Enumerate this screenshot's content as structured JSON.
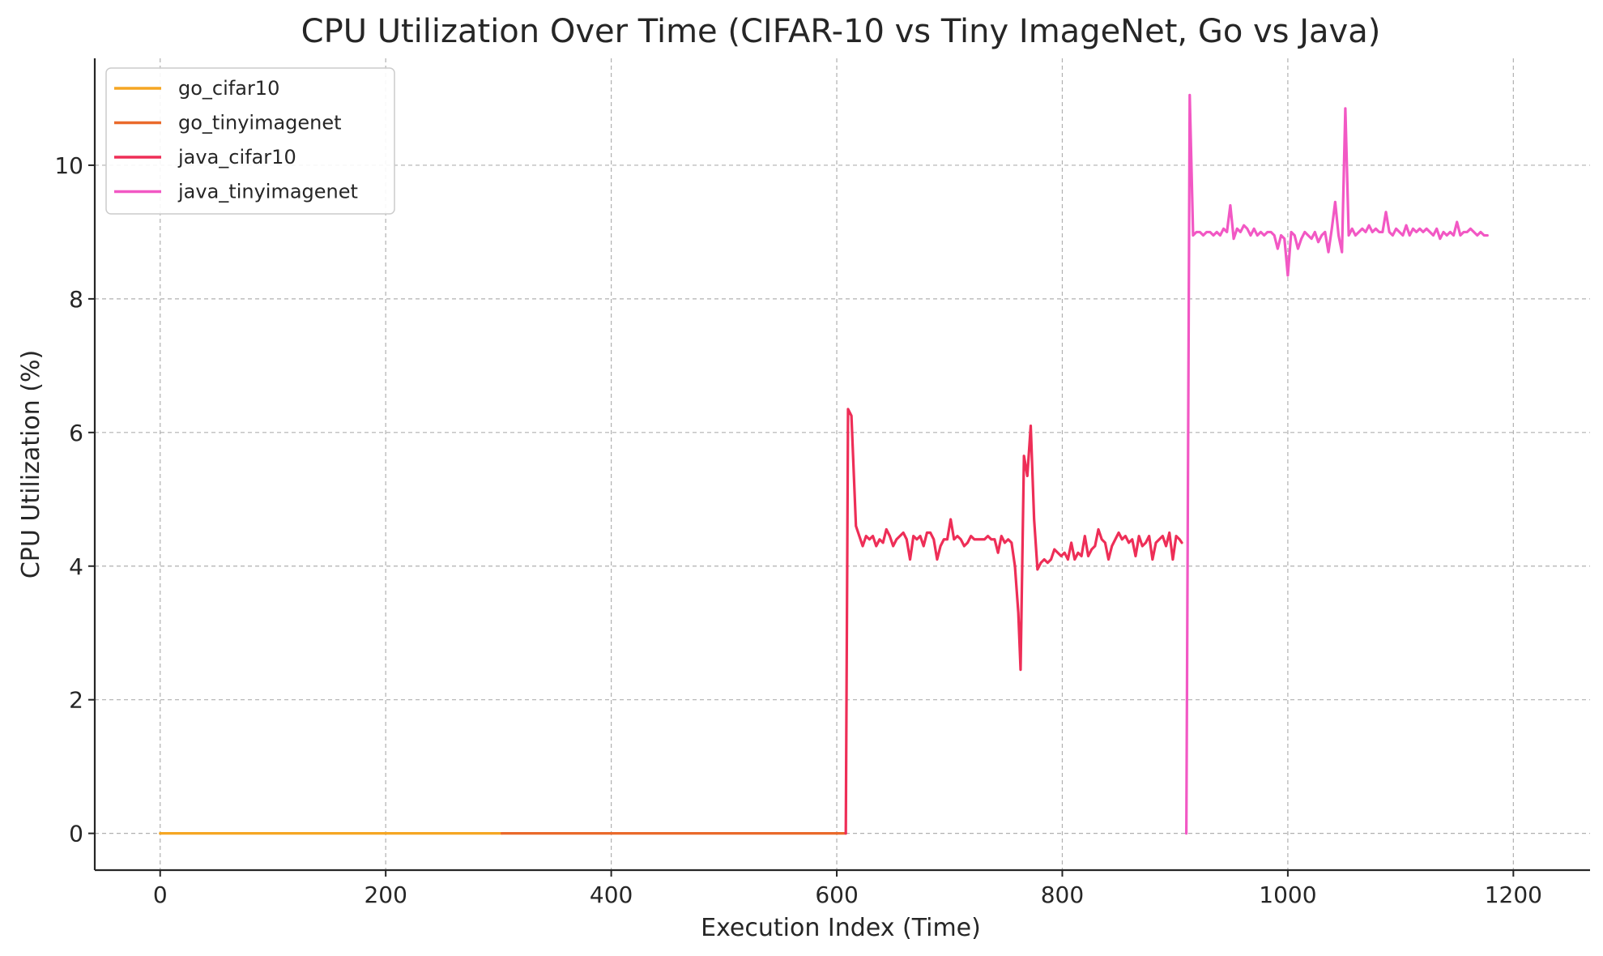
{
  "chart_data": {
    "type": "line",
    "title": "CPU Utilization Over Time (CIFAR-10 vs Tiny ImageNet, Go vs Java)",
    "xlabel": "Execution Index (Time)",
    "ylabel": "CPU Utilization (%)",
    "xlim": [
      -58,
      1268
    ],
    "ylim": [
      -0.55,
      11.6
    ],
    "xticks": [
      0,
      200,
      400,
      600,
      800,
      1000,
      1200
    ],
    "yticks": [
      0,
      2,
      4,
      6,
      8,
      10
    ],
    "grid": true,
    "legend_position": "top-left",
    "series": [
      {
        "name": "go_cifar10",
        "color": "#f5a623",
        "points": [
          [
            0,
            0
          ],
          [
            303,
            0
          ]
        ]
      },
      {
        "name": "go_tinyimagenet",
        "color": "#ea6a2b",
        "points": [
          [
            303,
            0
          ],
          [
            608,
            0
          ]
        ]
      },
      {
        "name": "java_cifar10",
        "color": "#ee2e57",
        "points": [
          [
            608,
            0
          ],
          [
            610,
            6.35
          ],
          [
            613,
            6.25
          ],
          [
            617,
            4.6
          ],
          [
            620,
            4.45
          ],
          [
            623,
            4.3
          ],
          [
            626,
            4.45
          ],
          [
            629,
            4.4
          ],
          [
            632,
            4.45
          ],
          [
            635,
            4.3
          ],
          [
            638,
            4.4
          ],
          [
            641,
            4.35
          ],
          [
            644,
            4.55
          ],
          [
            647,
            4.45
          ],
          [
            650,
            4.3
          ],
          [
            653,
            4.4
          ],
          [
            656,
            4.45
          ],
          [
            659,
            4.5
          ],
          [
            662,
            4.4
          ],
          [
            665,
            4.1
          ],
          [
            668,
            4.45
          ],
          [
            671,
            4.4
          ],
          [
            674,
            4.45
          ],
          [
            677,
            4.3
          ],
          [
            680,
            4.5
          ],
          [
            683,
            4.5
          ],
          [
            686,
            4.4
          ],
          [
            689,
            4.1
          ],
          [
            692,
            4.3
          ],
          [
            695,
            4.4
          ],
          [
            698,
            4.4
          ],
          [
            701,
            4.7
          ],
          [
            704,
            4.4
          ],
          [
            707,
            4.45
          ],
          [
            710,
            4.4
          ],
          [
            713,
            4.3
          ],
          [
            716,
            4.35
          ],
          [
            719,
            4.45
          ],
          [
            722,
            4.4
          ],
          [
            725,
            4.4
          ],
          [
            728,
            4.4
          ],
          [
            731,
            4.4
          ],
          [
            734,
            4.45
          ],
          [
            737,
            4.4
          ],
          [
            740,
            4.4
          ],
          [
            743,
            4.2
          ],
          [
            746,
            4.45
          ],
          [
            749,
            4.35
          ],
          [
            752,
            4.4
          ],
          [
            755,
            4.35
          ],
          [
            758,
            4.0
          ],
          [
            761,
            3.3
          ],
          [
            763,
            2.45
          ],
          [
            766,
            5.65
          ],
          [
            769,
            5.35
          ],
          [
            772,
            6.1
          ],
          [
            775,
            4.7
          ],
          [
            778,
            3.95
          ],
          [
            781,
            4.05
          ],
          [
            784,
            4.1
          ],
          [
            787,
            4.05
          ],
          [
            790,
            4.1
          ],
          [
            793,
            4.25
          ],
          [
            796,
            4.2
          ],
          [
            799,
            4.15
          ],
          [
            802,
            4.2
          ],
          [
            805,
            4.1
          ],
          [
            808,
            4.35
          ],
          [
            811,
            4.1
          ],
          [
            814,
            4.2
          ],
          [
            817,
            4.15
          ],
          [
            820,
            4.45
          ],
          [
            823,
            4.15
          ],
          [
            826,
            4.25
          ],
          [
            829,
            4.3
          ],
          [
            832,
            4.55
          ],
          [
            835,
            4.4
          ],
          [
            838,
            4.35
          ],
          [
            841,
            4.1
          ],
          [
            844,
            4.3
          ],
          [
            847,
            4.4
          ],
          [
            850,
            4.5
          ],
          [
            853,
            4.4
          ],
          [
            856,
            4.45
          ],
          [
            859,
            4.35
          ],
          [
            862,
            4.4
          ],
          [
            865,
            4.15
          ],
          [
            868,
            4.45
          ],
          [
            871,
            4.3
          ],
          [
            874,
            4.35
          ],
          [
            877,
            4.45
          ],
          [
            880,
            4.1
          ],
          [
            883,
            4.35
          ],
          [
            886,
            4.4
          ],
          [
            889,
            4.45
          ],
          [
            892,
            4.3
          ],
          [
            895,
            4.5
          ],
          [
            898,
            4.1
          ],
          [
            901,
            4.45
          ],
          [
            904,
            4.4
          ],
          [
            906,
            4.35
          ]
        ]
      },
      {
        "name": "java_tinyimagenet",
        "color": "#f258c4",
        "points": [
          [
            910,
            0
          ],
          [
            913,
            11.05
          ],
          [
            916,
            8.95
          ],
          [
            919,
            9.0
          ],
          [
            922,
            9.0
          ],
          [
            925,
            8.95
          ],
          [
            928,
            9.0
          ],
          [
            931,
            9.0
          ],
          [
            934,
            8.95
          ],
          [
            937,
            9.0
          ],
          [
            940,
            8.95
          ],
          [
            943,
            9.05
          ],
          [
            946,
            9.0
          ],
          [
            949,
            9.4
          ],
          [
            952,
            8.9
          ],
          [
            955,
            9.05
          ],
          [
            958,
            9.0
          ],
          [
            961,
            9.1
          ],
          [
            964,
            9.05
          ],
          [
            967,
            8.95
          ],
          [
            970,
            9.05
          ],
          [
            973,
            8.95
          ],
          [
            976,
            9.0
          ],
          [
            979,
            8.95
          ],
          [
            982,
            9.0
          ],
          [
            985,
            9.0
          ],
          [
            988,
            8.95
          ],
          [
            991,
            8.75
          ],
          [
            994,
            8.95
          ],
          [
            997,
            8.9
          ],
          [
            1000,
            8.35
          ],
          [
            1003,
            9.0
          ],
          [
            1006,
            8.95
          ],
          [
            1009,
            8.75
          ],
          [
            1012,
            8.9
          ],
          [
            1015,
            9.0
          ],
          [
            1018,
            8.95
          ],
          [
            1021,
            8.9
          ],
          [
            1024,
            9.0
          ],
          [
            1027,
            8.85
          ],
          [
            1030,
            8.95
          ],
          [
            1033,
            9.0
          ],
          [
            1036,
            8.7
          ],
          [
            1039,
            9.05
          ],
          [
            1042,
            9.45
          ],
          [
            1045,
            8.95
          ],
          [
            1048,
            8.7
          ],
          [
            1051,
            10.85
          ],
          [
            1054,
            8.95
          ],
          [
            1057,
            9.05
          ],
          [
            1060,
            8.95
          ],
          [
            1063,
            9.0
          ],
          [
            1066,
            9.05
          ],
          [
            1069,
            9.0
          ],
          [
            1072,
            9.1
          ],
          [
            1075,
            9.0
          ],
          [
            1078,
            9.05
          ],
          [
            1081,
            9.0
          ],
          [
            1084,
            9.0
          ],
          [
            1087,
            9.3
          ],
          [
            1090,
            9.0
          ],
          [
            1093,
            8.95
          ],
          [
            1096,
            9.05
          ],
          [
            1099,
            9.0
          ],
          [
            1102,
            8.95
          ],
          [
            1105,
            9.1
          ],
          [
            1108,
            8.95
          ],
          [
            1111,
            9.05
          ],
          [
            1114,
            9.0
          ],
          [
            1117,
            9.05
          ],
          [
            1120,
            9.0
          ],
          [
            1123,
            9.05
          ],
          [
            1126,
            9.0
          ],
          [
            1129,
            8.95
          ],
          [
            1132,
            9.05
          ],
          [
            1135,
            8.9
          ],
          [
            1138,
            9.0
          ],
          [
            1141,
            8.95
          ],
          [
            1144,
            9.0
          ],
          [
            1147,
            8.95
          ],
          [
            1150,
            9.15
          ],
          [
            1153,
            8.95
          ],
          [
            1156,
            9.0
          ],
          [
            1159,
            9.0
          ],
          [
            1162,
            9.05
          ],
          [
            1165,
            9.0
          ],
          [
            1168,
            8.95
          ],
          [
            1171,
            9.0
          ],
          [
            1174,
            8.95
          ],
          [
            1177,
            8.95
          ]
        ]
      }
    ]
  }
}
